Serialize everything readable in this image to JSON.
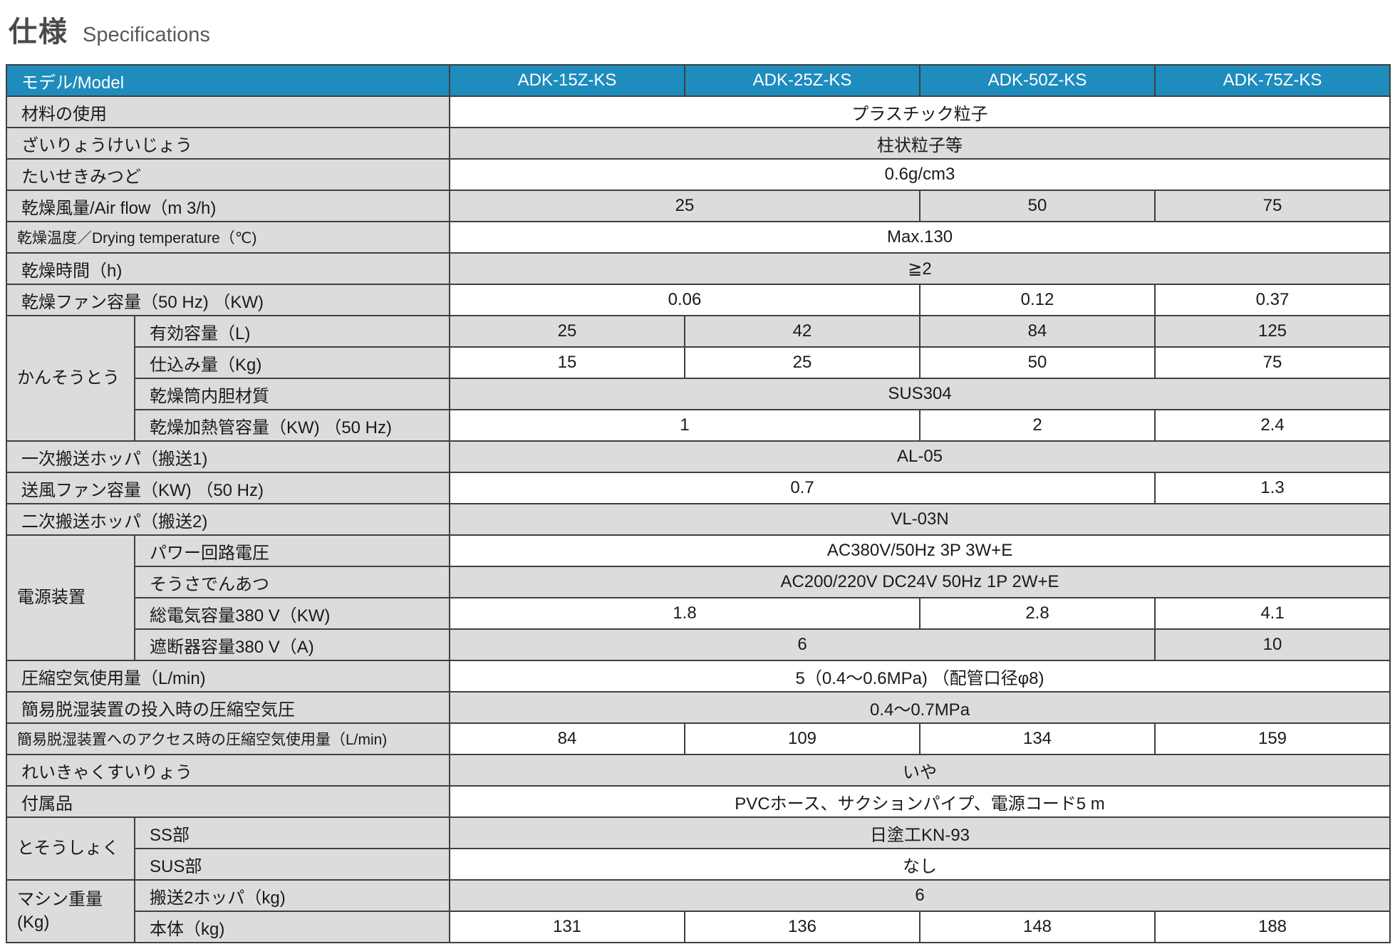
{
  "page": {
    "title_ja": "仕様",
    "title_en": "Specifications"
  },
  "colors": {
    "header_bg": "#1e8cbd",
    "row_gray": "#dcdcdc",
    "border": "#404040"
  },
  "table": {
    "header": {
      "label": "モデル/Model",
      "models": [
        "ADK-15Z-KS",
        "ADK-25Z-KS",
        "ADK-50Z-KS",
        "ADK-75Z-KS"
      ]
    },
    "rows": [
      {
        "label": "材料の使用",
        "cells": [
          {
            "t": "プラスチック粒子",
            "s": 4
          }
        ]
      },
      {
        "label": "ざいりょうけいじょう",
        "cells": [
          {
            "t": "柱状粒子等",
            "s": 4
          }
        ]
      },
      {
        "label": "たいせきみつど",
        "cells": [
          {
            "t": "0.6g/cm3",
            "s": 4
          }
        ]
      },
      {
        "label": "乾燥風量/Air flow（m 3/h)",
        "cells": [
          {
            "t": "25",
            "s": 2
          },
          {
            "t": "50",
            "s": 1
          },
          {
            "t": "75",
            "s": 1
          }
        ]
      },
      {
        "label": "乾燥温度／Drying temperature（℃)",
        "cells": [
          {
            "t": "Max.130",
            "s": 4
          }
        ]
      },
      {
        "label": "乾燥時間（h)",
        "cells": [
          {
            "t": "≧2",
            "s": 4
          }
        ]
      },
      {
        "label": "乾燥ファン容量（50 Hz) （KW)",
        "cells": [
          {
            "t": "0.06",
            "s": 2
          },
          {
            "t": "0.12",
            "s": 1
          },
          {
            "t": "0.37",
            "s": 1
          }
        ]
      },
      {
        "group": "かんそうとう",
        "groupspan": 4,
        "in_group": true,
        "label": "有効容量（L)",
        "cells": [
          {
            "t": "25",
            "s": 1
          },
          {
            "t": "42",
            "s": 1
          },
          {
            "t": "84",
            "s": 1
          },
          {
            "t": "125",
            "s": 1
          }
        ]
      },
      {
        "in_group": true,
        "label": "仕込み量（Kg)",
        "cells": [
          {
            "t": "15",
            "s": 1
          },
          {
            "t": "25",
            "s": 1
          },
          {
            "t": "50",
            "s": 1
          },
          {
            "t": "75",
            "s": 1
          }
        ]
      },
      {
        "in_group": true,
        "label": "乾燥筒内胆材質",
        "cells": [
          {
            "t": "SUS304",
            "s": 4
          }
        ]
      },
      {
        "in_group": true,
        "label": "乾燥加熱管容量（KW) （50 Hz)",
        "cells": [
          {
            "t": "1",
            "s": 2
          },
          {
            "t": "2",
            "s": 1
          },
          {
            "t": "2.4",
            "s": 1
          }
        ]
      },
      {
        "label": "一次搬送ホッパ（搬送1)",
        "cells": [
          {
            "t": "AL-05",
            "s": 4
          }
        ]
      },
      {
        "label": "送風ファン容量（KW) （50 Hz)",
        "cells": [
          {
            "t": "0.7",
            "s": 3
          },
          {
            "t": "1.3",
            "s": 1
          }
        ]
      },
      {
        "label": "二次搬送ホッパ（搬送2)",
        "cells": [
          {
            "t": "VL-03N",
            "s": 4
          }
        ]
      },
      {
        "group": "電源装置",
        "groupspan": 4,
        "in_group": true,
        "label": "パワー回路電圧",
        "cells": [
          {
            "t": "AC380V/50Hz 3P 3W+E",
            "s": 4
          }
        ]
      },
      {
        "in_group": true,
        "label": "そうさでんあつ",
        "cells": [
          {
            "t": "AC200/220V DC24V 50Hz 1P 2W+E",
            "s": 4
          }
        ]
      },
      {
        "in_group": true,
        "label": "総電気容量380 V（KW)",
        "cells": [
          {
            "t": "1.8",
            "s": 2
          },
          {
            "t": "2.8",
            "s": 1
          },
          {
            "t": "4.1",
            "s": 1
          }
        ]
      },
      {
        "in_group": true,
        "label": "遮断器容量380 V（A)",
        "cells": [
          {
            "t": "6",
            "s": 3
          },
          {
            "t": "10",
            "s": 1
          }
        ]
      },
      {
        "label": "圧縮空気使用量（L/min)",
        "cells": [
          {
            "t": "5（0.4～0.6MPa) （配管口径φ8)",
            "s": 4
          }
        ]
      },
      {
        "label": "簡易脱湿装置の投入時の圧縮空気圧",
        "cells": [
          {
            "t": "0.4～0.7MPa",
            "s": 4
          }
        ]
      },
      {
        "label": "簡易脱湿装置へのアクセス時の圧縮空気使用量（L/min)",
        "cells": [
          {
            "t": "84",
            "s": 1
          },
          {
            "t": "109",
            "s": 1
          },
          {
            "t": "134",
            "s": 1
          },
          {
            "t": "159",
            "s": 1
          }
        ]
      },
      {
        "label": "れいきゃくすいりょう",
        "cells": [
          {
            "t": "いや",
            "s": 4
          }
        ]
      },
      {
        "label": "付属品",
        "cells": [
          {
            "t": "PVCホース、サクションパイプ、電源コード5 m",
            "s": 4
          }
        ]
      },
      {
        "group": "とそうしょく",
        "groupspan": 2,
        "in_group": true,
        "label": "SS部",
        "cells": [
          {
            "t": "日塗工KN-93",
            "s": 4
          }
        ]
      },
      {
        "in_group": true,
        "label": "SUS部",
        "cells": [
          {
            "t": "なし",
            "s": 4
          }
        ]
      },
      {
        "group": "マシン重量\n(Kg)",
        "groupspan": 2,
        "in_group": true,
        "label": "搬送2ホッパ（kg)",
        "cells": [
          {
            "t": "6",
            "s": 4
          }
        ]
      },
      {
        "in_group": true,
        "label": "本体（kg)",
        "cells": [
          {
            "t": "131",
            "s": 1
          },
          {
            "t": "136",
            "s": 1
          },
          {
            "t": "148",
            "s": 1
          },
          {
            "t": "188",
            "s": 1
          }
        ]
      }
    ]
  }
}
